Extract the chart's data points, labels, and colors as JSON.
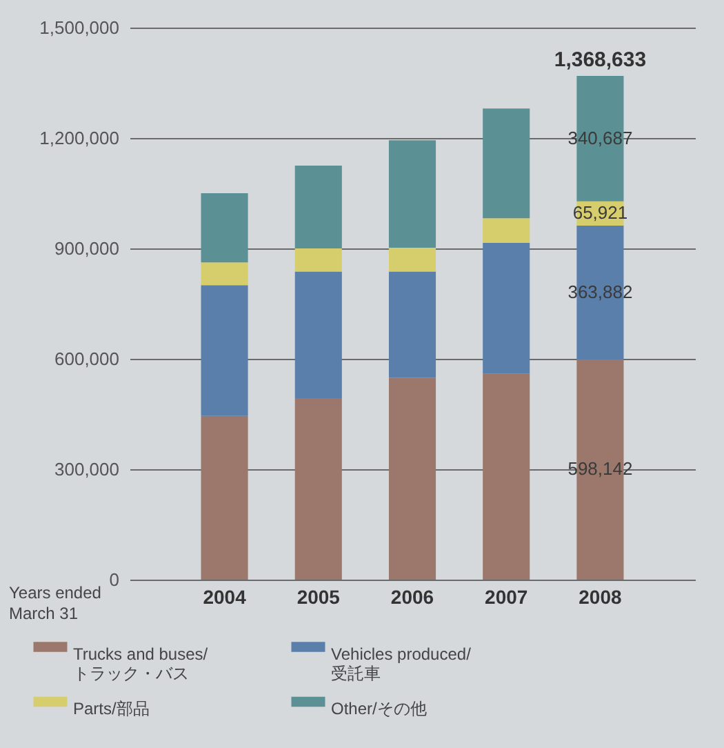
{
  "chart_data": {
    "type": "bar",
    "stacked": true,
    "xlabel": "Years ended March 31",
    "categories": [
      "2004",
      "2005",
      "2006",
      "2007",
      "2008"
    ],
    "series": [
      {
        "name": "Trucks and buses/トラック・バス",
        "color": "#9c786c",
        "values": [
          445000,
          493000,
          549000,
          559000,
          598142
        ],
        "value_labels": [
          null,
          null,
          null,
          null,
          "598,142"
        ]
      },
      {
        "name": "Vehicles produced/受託車",
        "color": "#5b7fab",
        "values": [
          355000,
          344000,
          288000,
          356000,
          363882
        ],
        "value_labels": [
          null,
          null,
          null,
          null,
          "363,882"
        ]
      },
      {
        "name": "Parts/部品",
        "color": "#d6ce6c",
        "values": [
          62000,
          63000,
          65000,
          67000,
          65921
        ],
        "value_labels": [
          null,
          null,
          null,
          null,
          "65,921"
        ]
      },
      {
        "name": "Other/その他",
        "color": "#5b9095",
        "values": [
          188000,
          225000,
          292000,
          298000,
          340687
        ],
        "value_labels": [
          null,
          null,
          null,
          null,
          "340,687"
        ]
      }
    ],
    "totals": [
      null,
      null,
      null,
      null,
      "1,368,633"
    ],
    "ylim": [
      0,
      1500000
    ],
    "yticks": [
      0,
      {
        "value": 300000,
        "label": "300,000"
      },
      {
        "value": 600000,
        "label": "600,000"
      },
      {
        "value": 900000,
        "label": "900,000"
      },
      {
        "value": 1200000,
        "label": "1,200,000"
      },
      {
        "value": 1500000,
        "label": "1,500,000"
      }
    ],
    "grid": "y",
    "legend": "bottom"
  }
}
